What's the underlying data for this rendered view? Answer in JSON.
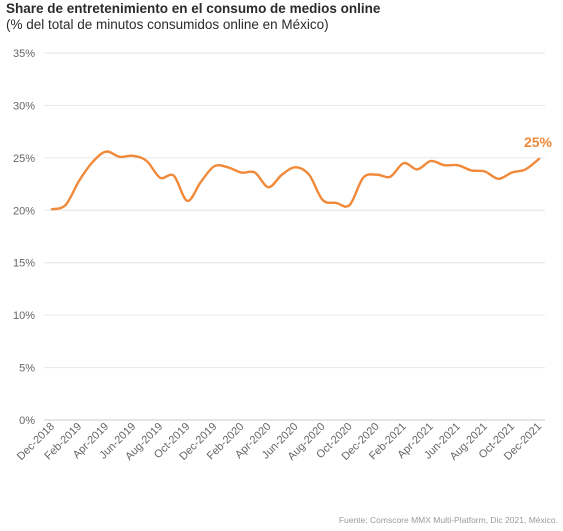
{
  "chart_data": {
    "type": "line",
    "title": "Share de entretenimiento en el consumo de medios online",
    "subtitle": "(% del total de minutos consumidos online en México)",
    "source": "Fuente: Comscore MMX Multi-Platform, Dic 2021, México.",
    "ylim": [
      0,
      35
    ],
    "yticks": [
      "0%",
      "5%",
      "10%",
      "15%",
      "20%",
      "25%",
      "30%",
      "35%"
    ],
    "ytick_values": [
      0,
      5,
      10,
      15,
      20,
      25,
      30,
      35
    ],
    "grid": true,
    "x_tick_labels": [
      "Dec-2018",
      "Feb-2019",
      "Apr-2019",
      "Jun-2019",
      "Aug-2019",
      "Oct-2019",
      "Dec-2019",
      "Feb-2020",
      "Apr-2020",
      "Jun-2020",
      "Aug-2020",
      "Oct-2020",
      "Dec-2020",
      "Feb-2021",
      "Apr-2021",
      "Jun-2021",
      "Aug-2021",
      "Oct-2021",
      "Dec-2021"
    ],
    "x": [
      "Dec-2018",
      "Jan-2019",
      "Feb-2019",
      "Mar-2019",
      "Apr-2019",
      "May-2019",
      "Jun-2019",
      "Jul-2019",
      "Aug-2019",
      "Sep-2019",
      "Oct-2019",
      "Nov-2019",
      "Dec-2019",
      "Jan-2020",
      "Feb-2020",
      "Mar-2020",
      "Apr-2020",
      "May-2020",
      "Jun-2020",
      "Jul-2020",
      "Aug-2020",
      "Sep-2020",
      "Oct-2020",
      "Nov-2020",
      "Dec-2020",
      "Jan-2021",
      "Feb-2021",
      "Mar-2021",
      "Apr-2021",
      "May-2021",
      "Jun-2021",
      "Jul-2021",
      "Aug-2021",
      "Sep-2021",
      "Oct-2021",
      "Nov-2021",
      "Dec-2021"
    ],
    "series": [
      {
        "name": "",
        "color": "#f08a3a",
        "values": [
          20.1,
          20.5,
          22.8,
          24.6,
          25.6,
          25.1,
          25.2,
          24.7,
          23.1,
          23.3,
          20.9,
          22.7,
          24.2,
          24.1,
          23.6,
          23.6,
          22.2,
          23.4,
          24.1,
          23.4,
          21.0,
          20.7,
          20.5,
          23.1,
          23.4,
          23.2,
          24.5,
          23.9,
          24.7,
          24.3,
          24.3,
          23.8,
          23.7,
          23.0,
          23.6,
          23.9,
          24.9
        ]
      }
    ],
    "annotation": {
      "text": "25%",
      "color": "#f08a3a"
    }
  }
}
